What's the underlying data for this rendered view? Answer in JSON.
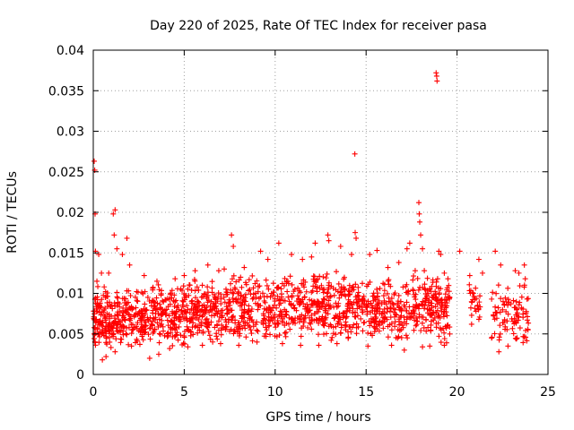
{
  "chart_data": {
    "type": "scatter",
    "title": "Day 220 of 2025, Rate Of TEC Index for receiver pasa",
    "xlabel": "GPS time / hours",
    "ylabel": "ROTI / TECUs",
    "xlim": [
      0,
      25
    ],
    "ylim": [
      0,
      0.04
    ],
    "x_ticks": [
      0,
      5,
      10,
      15,
      20,
      25
    ],
    "x_tick_labels": [
      "0",
      "5",
      "10",
      "15",
      "20",
      "25"
    ],
    "y_ticks": [
      0,
      0.005,
      0.01,
      0.015,
      0.02,
      0.025,
      0.03,
      0.035,
      0.04
    ],
    "y_tick_labels": [
      "0",
      "0.005",
      "0.01",
      "0.015",
      "0.02",
      "0.025",
      "0.03",
      "0.035",
      "0.04"
    ],
    "grid": true,
    "marker": "plus",
    "color": "#ff0000",
    "sampling": "approximate; dense band estimated from figure",
    "series": [
      {
        "name": "ROTI",
        "points": [
          [
            0.05,
            0.0263
          ],
          [
            0.08,
            0.0252
          ],
          [
            0.1,
            0.0198
          ],
          [
            0.12,
            0.0152
          ],
          [
            0.2,
            0.0115
          ],
          [
            0.3,
            0.0148
          ],
          [
            0.45,
            0.0125
          ],
          [
            0.6,
            0.0108
          ],
          [
            0.85,
            0.0125
          ],
          [
            1.1,
            0.0198
          ],
          [
            1.2,
            0.0203
          ],
          [
            1.15,
            0.0172
          ],
          [
            1.3,
            0.0155
          ],
          [
            1.6,
            0.0148
          ],
          [
            1.85,
            0.0168
          ],
          [
            2.0,
            0.0135
          ],
          [
            2.8,
            0.0122
          ],
          [
            3.5,
            0.0115
          ],
          [
            4.5,
            0.0118
          ],
          [
            5.0,
            0.0122
          ],
          [
            5.6,
            0.0128
          ],
          [
            6.3,
            0.0135
          ],
          [
            6.9,
            0.0128
          ],
          [
            7.2,
            0.013
          ],
          [
            7.6,
            0.0172
          ],
          [
            7.7,
            0.0158
          ],
          [
            8.3,
            0.0132
          ],
          [
            9.2,
            0.0152
          ],
          [
            9.6,
            0.0142
          ],
          [
            10.2,
            0.0162
          ],
          [
            10.9,
            0.0148
          ],
          [
            11.5,
            0.0142
          ],
          [
            12.0,
            0.0145
          ],
          [
            12.2,
            0.0162
          ],
          [
            12.9,
            0.0172
          ],
          [
            12.95,
            0.0165
          ],
          [
            13.6,
            0.0158
          ],
          [
            14.2,
            0.0148
          ],
          [
            14.38,
            0.0272
          ],
          [
            14.4,
            0.0175
          ],
          [
            14.45,
            0.0168
          ],
          [
            15.2,
            0.0148
          ],
          [
            15.6,
            0.0153
          ],
          [
            16.2,
            0.0132
          ],
          [
            16.8,
            0.0138
          ],
          [
            17.25,
            0.0155
          ],
          [
            17.4,
            0.0162
          ],
          [
            17.7,
            0.0128
          ],
          [
            17.9,
            0.0212
          ],
          [
            17.92,
            0.0198
          ],
          [
            17.95,
            0.0188
          ],
          [
            18.0,
            0.0172
          ],
          [
            18.1,
            0.0155
          ],
          [
            18.2,
            0.0128
          ],
          [
            18.85,
            0.0372
          ],
          [
            18.88,
            0.0368
          ],
          [
            18.9,
            0.0362
          ],
          [
            19.0,
            0.0152
          ],
          [
            19.1,
            0.0148
          ],
          [
            19.3,
            0.0125
          ],
          [
            19.5,
            0.0118
          ],
          [
            20.15,
            0.0152
          ],
          [
            20.7,
            0.0122
          ],
          [
            21.2,
            0.0142
          ],
          [
            21.4,
            0.0125
          ],
          [
            22.1,
            0.0152
          ],
          [
            22.4,
            0.0135
          ],
          [
            23.2,
            0.0128
          ],
          [
            23.4,
            0.0125
          ],
          [
            23.7,
            0.0135
          ],
          [
            23.75,
            0.0118
          ],
          [
            0.5,
            0.0018
          ],
          [
            0.7,
            0.0022
          ],
          [
            1.2,
            0.0028
          ],
          [
            2.1,
            0.0035
          ],
          [
            3.1,
            0.002
          ],
          [
            3.6,
            0.0025
          ],
          [
            4.2,
            0.0032
          ],
          [
            5.2,
            0.0034
          ],
          [
            6.0,
            0.0036
          ],
          [
            7.0,
            0.0038
          ],
          [
            8.0,
            0.0036
          ],
          [
            9.0,
            0.004
          ],
          [
            10.4,
            0.0038
          ],
          [
            11.4,
            0.0036
          ],
          [
            12.4,
            0.0036
          ],
          [
            13.4,
            0.0038
          ],
          [
            15.1,
            0.0035
          ],
          [
            16.4,
            0.0036
          ],
          [
            17.1,
            0.003
          ],
          [
            18.1,
            0.0034
          ],
          [
            18.5,
            0.0035
          ],
          [
            19.3,
            0.0036
          ],
          [
            20.8,
            0.0062
          ],
          [
            21.2,
            0.0068
          ],
          [
            21.9,
            0.0045
          ],
          [
            22.3,
            0.0028
          ],
          [
            22.8,
            0.0035
          ],
          [
            23.3,
            0.0045
          ],
          [
            23.9,
            0.0055
          ]
        ]
      }
    ],
    "dense_band_segments": [
      {
        "x_start": 0.0,
        "x_end": 1.0,
        "y_min": 0.0028,
        "y_max": 0.0112,
        "count": 120
      },
      {
        "x_start": 1.0,
        "x_end": 3.0,
        "y_min": 0.0035,
        "y_max": 0.0108,
        "count": 170
      },
      {
        "x_start": 3.0,
        "x_end": 5.5,
        "y_min": 0.0035,
        "y_max": 0.0112,
        "count": 200
      },
      {
        "x_start": 5.5,
        "x_end": 7.5,
        "y_min": 0.004,
        "y_max": 0.0118,
        "count": 160
      },
      {
        "x_start": 7.5,
        "x_end": 10.0,
        "y_min": 0.004,
        "y_max": 0.0122,
        "count": 190
      },
      {
        "x_start": 10.0,
        "x_end": 12.5,
        "y_min": 0.0045,
        "y_max": 0.0125,
        "count": 180
      },
      {
        "x_start": 12.5,
        "x_end": 15.0,
        "y_min": 0.0042,
        "y_max": 0.0128,
        "count": 190
      },
      {
        "x_start": 15.0,
        "x_end": 17.5,
        "y_min": 0.004,
        "y_max": 0.0118,
        "count": 180
      },
      {
        "x_start": 17.5,
        "x_end": 19.6,
        "y_min": 0.0038,
        "y_max": 0.0125,
        "count": 170
      },
      {
        "x_start": 20.6,
        "x_end": 21.3,
        "y_min": 0.007,
        "y_max": 0.0115,
        "count": 25
      },
      {
        "x_start": 21.9,
        "x_end": 24.0,
        "y_min": 0.0035,
        "y_max": 0.0112,
        "count": 90
      }
    ]
  }
}
